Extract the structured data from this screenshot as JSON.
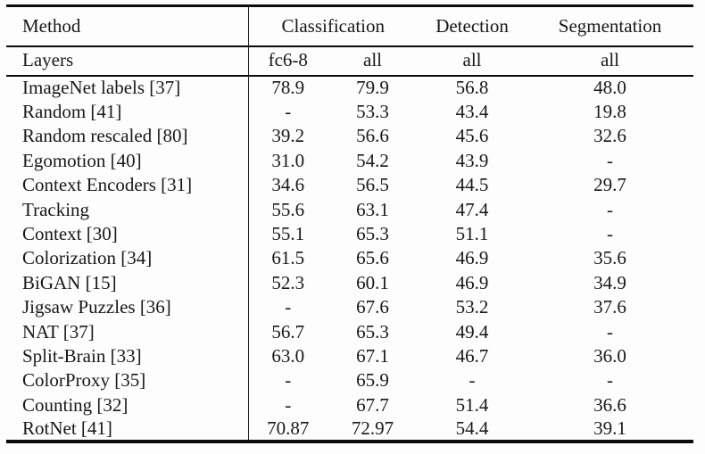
{
  "table": {
    "header": {
      "method": "Method",
      "groups": [
        "Classification",
        "Detection",
        "Segmentation"
      ]
    },
    "subheader": {
      "label": "Layers",
      "cols": [
        "fc6-8",
        "all",
        "all",
        "all"
      ]
    },
    "rows": [
      {
        "method": "ImageNet labels [37]",
        "values": [
          "78.9",
          "79.9",
          "56.8",
          "48.0"
        ]
      },
      {
        "method": "Random [41]",
        "values": [
          "-",
          "53.3",
          "43.4",
          "19.8"
        ]
      },
      {
        "method": "Random rescaled [80]",
        "values": [
          "39.2",
          "56.6",
          "45.6",
          "32.6"
        ]
      },
      {
        "method": "Egomotion [40]",
        "values": [
          "31.0",
          "54.2",
          "43.9",
          "-"
        ]
      },
      {
        "method": "Context Encoders [31]",
        "values": [
          "34.6",
          "56.5",
          "44.5",
          "29.7"
        ]
      },
      {
        "method": "Tracking",
        "values": [
          "55.6",
          "63.1",
          "47.4",
          "-"
        ]
      },
      {
        "method": "Context [30]",
        "values": [
          "55.1",
          "65.3",
          "51.1",
          "-"
        ]
      },
      {
        "method": "Colorization [34]",
        "values": [
          "61.5",
          "65.6",
          "46.9",
          "35.6"
        ]
      },
      {
        "method": "BiGAN [15]",
        "values": [
          "52.3",
          "60.1",
          "46.9",
          "34.9"
        ]
      },
      {
        "method": "Jigsaw Puzzles [36]",
        "values": [
          "-",
          "67.6",
          "53.2",
          "37.6"
        ]
      },
      {
        "method": "NAT [37]",
        "values": [
          "56.7",
          "65.3",
          "49.4",
          "-"
        ]
      },
      {
        "method": "Split-Brain [33]",
        "values": [
          "63.0",
          "67.1",
          "46.7",
          "36.0"
        ]
      },
      {
        "method": "ColorProxy [35]",
        "values": [
          "-",
          "65.9",
          "-",
          "-"
        ]
      },
      {
        "method": "Counting [32]",
        "values": [
          "-",
          "67.7",
          "51.4",
          "36.6"
        ]
      },
      {
        "method": "RotNet [41]",
        "values": [
          "70.87",
          "72.97",
          "54.4",
          "39.1"
        ]
      }
    ],
    "colors": {
      "rule": "#0b0b0b",
      "text": "#181818",
      "background": "#fdfdfd"
    }
  }
}
